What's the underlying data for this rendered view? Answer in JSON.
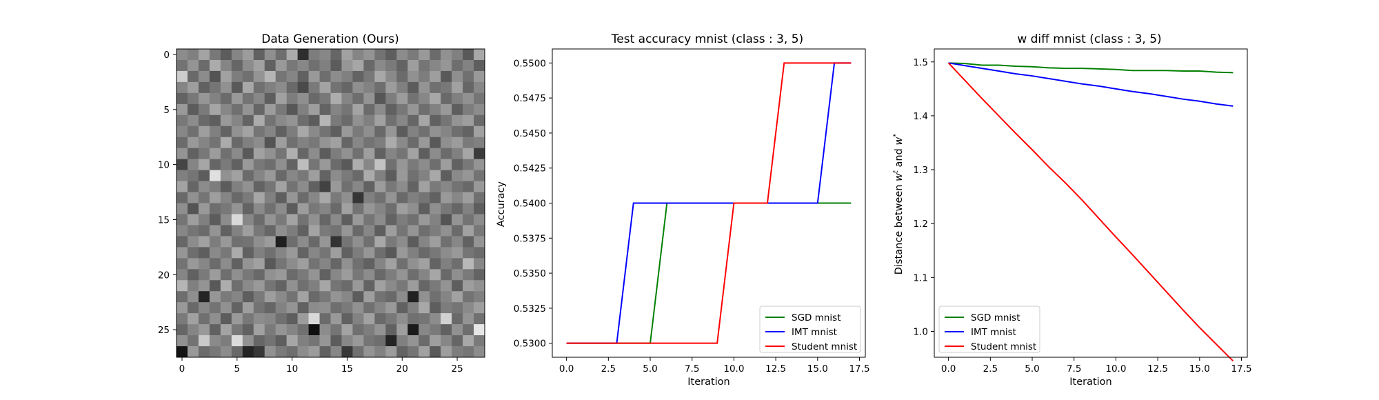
{
  "chart_data": [
    {
      "type": "heatmap",
      "title": "Data Generation (Ours)",
      "colormap": "gray",
      "rows": 28,
      "cols": 28,
      "xticks": [
        "0",
        "5",
        "10",
        "15",
        "20",
        "25"
      ],
      "yticks": [
        "0",
        "5",
        "10",
        "15",
        "20",
        "25"
      ],
      "vmin": 0,
      "vmax": 1,
      "values": [
        [
          0.55,
          0.5,
          0.64,
          0.47,
          0.36,
          0.52,
          0.61,
          0.38,
          0.56,
          0.43,
          0.67,
          0.18,
          0.49,
          0.53,
          0.4,
          0.63,
          0.52,
          0.58,
          0.45,
          0.37,
          0.55,
          0.48,
          0.6,
          0.42,
          0.57,
          0.5,
          0.35,
          0.66
        ],
        [
          0.45,
          0.58,
          0.42,
          0.67,
          0.52,
          0.4,
          0.55,
          0.63,
          0.38,
          0.6,
          0.47,
          0.53,
          0.44,
          0.5,
          0.36,
          0.59,
          0.65,
          0.41,
          0.54,
          0.48,
          0.39,
          0.62,
          0.46,
          0.53,
          0.59,
          0.43,
          0.51,
          0.37
        ],
        [
          0.8,
          0.41,
          0.55,
          0.33,
          0.63,
          0.49,
          0.44,
          0.58,
          0.71,
          0.46,
          0.52,
          0.38,
          0.6,
          0.43,
          0.55,
          0.5,
          0.39,
          0.47,
          0.66,
          0.54,
          0.42,
          0.57,
          0.49,
          0.62,
          0.35,
          0.56,
          0.44,
          0.6
        ],
        [
          0.52,
          0.62,
          0.38,
          0.46,
          0.57,
          0.35,
          0.66,
          0.44,
          0.5,
          0.55,
          0.41,
          0.29,
          0.48,
          0.64,
          0.45,
          0.4,
          0.56,
          0.51,
          0.43,
          0.61,
          0.5,
          0.36,
          0.58,
          0.44,
          0.47,
          0.63,
          0.4,
          0.53
        ],
        [
          0.39,
          0.47,
          0.59,
          0.51,
          0.42,
          0.6,
          0.45,
          0.53,
          0.37,
          0.63,
          0.49,
          0.56,
          0.41,
          0.47,
          0.68,
          0.52,
          0.43,
          0.58,
          0.34,
          0.49,
          0.61,
          0.45,
          0.53,
          0.66,
          0.41,
          0.5,
          0.57,
          0.46
        ],
        [
          0.6,
          0.36,
          0.48,
          0.65,
          0.53,
          0.44,
          0.58,
          0.4,
          0.61,
          0.47,
          0.34,
          0.5,
          0.62,
          0.39,
          0.52,
          0.46,
          0.64,
          0.42,
          0.55,
          0.38,
          0.47,
          0.59,
          0.43,
          0.51,
          0.6,
          0.37,
          0.49,
          0.55
        ],
        [
          0.47,
          0.55,
          0.41,
          0.37,
          0.6,
          0.52,
          0.39,
          0.67,
          0.45,
          0.54,
          0.58,
          0.43,
          0.36,
          0.71,
          0.48,
          0.42,
          0.57,
          0.5,
          0.63,
          0.44,
          0.53,
          0.4,
          0.65,
          0.38,
          0.46,
          0.58,
          0.62,
          0.41
        ],
        [
          0.53,
          0.44,
          0.62,
          0.5,
          0.39,
          0.57,
          0.64,
          0.46,
          0.52,
          0.38,
          0.49,
          0.66,
          0.54,
          0.45,
          0.37,
          0.6,
          0.48,
          0.56,
          0.41,
          0.59,
          0.36,
          0.51,
          0.44,
          0.57,
          0.52,
          0.43,
          0.39,
          0.63
        ],
        [
          0.42,
          0.6,
          0.52,
          0.45,
          0.67,
          0.41,
          0.5,
          0.55,
          0.33,
          0.62,
          0.44,
          0.51,
          0.47,
          0.58,
          0.63,
          0.4,
          0.53,
          0.45,
          0.49,
          0.67,
          0.54,
          0.42,
          0.6,
          0.35,
          0.56,
          0.61,
          0.48,
          0.5
        ],
        [
          0.58,
          0.38,
          0.47,
          0.61,
          0.44,
          0.54,
          0.35,
          0.63,
          0.57,
          0.46,
          0.69,
          0.4,
          0.55,
          0.36,
          0.49,
          0.57,
          0.44,
          0.62,
          0.38,
          0.52,
          0.46,
          0.64,
          0.37,
          0.55,
          0.42,
          0.5,
          0.65,
          0.23
        ],
        [
          0.27,
          0.52,
          0.65,
          0.4,
          0.48,
          0.38,
          0.6,
          0.47,
          0.43,
          0.56,
          0.39,
          0.74,
          0.46,
          0.6,
          0.42,
          0.35,
          0.68,
          0.53,
          0.76,
          0.44,
          0.59,
          0.48,
          0.55,
          0.43,
          0.62,
          0.38,
          0.47,
          0.58
        ],
        [
          0.5,
          0.46,
          0.36,
          0.88,
          0.57,
          0.63,
          0.42,
          0.52,
          0.6,
          0.41,
          0.53,
          0.47,
          0.62,
          0.39,
          0.55,
          0.48,
          0.41,
          0.67,
          0.5,
          0.36,
          0.6,
          0.44,
          0.51,
          0.66,
          0.37,
          0.54,
          0.59,
          0.45
        ],
        [
          0.64,
          0.4,
          0.55,
          0.49,
          0.36,
          0.5,
          0.57,
          0.39,
          0.46,
          0.64,
          0.45,
          0.55,
          0.38,
          0.26,
          0.6,
          0.44,
          0.53,
          0.38,
          0.61,
          0.47,
          0.55,
          0.39,
          0.63,
          0.48,
          0.53,
          0.45,
          0.41,
          0.6
        ],
        [
          0.41,
          0.57,
          0.46,
          0.62,
          0.52,
          0.41,
          0.48,
          0.65,
          0.5,
          0.37,
          0.59,
          0.42,
          0.53,
          0.66,
          0.48,
          0.56,
          0.21,
          0.5,
          0.44,
          0.58,
          0.41,
          0.5,
          0.46,
          0.38,
          0.6,
          0.53,
          0.62,
          0.44
        ],
        [
          0.56,
          0.33,
          0.6,
          0.43,
          0.47,
          0.58,
          0.39,
          0.54,
          0.44,
          0.55,
          0.36,
          0.61,
          0.47,
          0.52,
          0.41,
          0.63,
          0.45,
          0.59,
          0.52,
          0.43,
          0.62,
          0.56,
          0.37,
          0.56,
          0.47,
          0.4,
          0.51,
          0.37
        ],
        [
          0.46,
          0.62,
          0.5,
          0.36,
          0.55,
          0.85,
          0.53,
          0.42,
          0.58,
          0.48,
          0.64,
          0.45,
          0.57,
          0.4,
          0.54,
          0.37,
          0.6,
          0.46,
          0.55,
          0.39,
          0.49,
          0.44,
          0.6,
          0.51,
          0.33,
          0.58,
          0.45,
          0.55
        ],
        [
          0.53,
          0.46,
          0.42,
          0.58,
          0.38,
          0.51,
          0.62,
          0.47,
          0.4,
          0.56,
          0.49,
          0.38,
          0.64,
          0.48,
          0.45,
          0.59,
          0.41,
          0.53,
          0.37,
          0.62,
          0.46,
          0.58,
          0.43,
          0.49,
          0.57,
          0.42,
          0.63,
          0.47
        ],
        [
          0.4,
          0.55,
          0.63,
          0.49,
          0.6,
          0.44,
          0.45,
          0.56,
          0.61,
          0.12,
          0.43,
          0.55,
          0.41,
          0.59,
          0.2,
          0.46,
          0.56,
          0.44,
          0.66,
          0.48,
          0.55,
          0.36,
          0.52,
          0.62,
          0.44,
          0.53,
          0.38,
          0.58
        ],
        [
          0.59,
          0.43,
          0.37,
          0.54,
          0.47,
          0.67,
          0.38,
          0.5,
          0.44,
          0.52,
          0.6,
          0.39,
          0.53,
          0.46,
          0.62,
          0.38,
          0.49,
          0.59,
          0.43,
          0.35,
          0.6,
          0.5,
          0.41,
          0.47,
          0.55,
          0.6,
          0.46,
          0.42
        ],
        [
          0.45,
          0.6,
          0.53,
          0.42,
          0.55,
          0.38,
          0.58,
          0.63,
          0.35,
          0.46,
          0.55,
          0.62,
          0.45,
          0.52,
          0.4,
          0.57,
          0.44,
          0.38,
          0.52,
          0.63,
          0.44,
          0.57,
          0.63,
          0.39,
          0.5,
          0.43,
          0.72,
          0.53
        ],
        [
          0.52,
          0.38,
          0.48,
          0.61,
          0.43,
          0.56,
          0.47,
          0.41,
          0.57,
          0.6,
          0.42,
          0.48,
          0.58,
          0.38,
          0.53,
          0.61,
          0.47,
          0.55,
          0.41,
          0.49,
          0.58,
          0.43,
          0.52,
          0.65,
          0.41,
          0.56,
          0.48,
          0.39
        ],
        [
          0.71,
          0.5,
          0.58,
          0.35,
          0.68,
          0.43,
          0.54,
          0.6,
          0.46,
          0.39,
          0.57,
          0.44,
          0.5,
          0.65,
          0.46,
          0.42,
          0.6,
          0.39,
          0.63,
          0.54,
          0.47,
          0.61,
          0.4,
          0.48,
          0.58,
          0.37,
          0.62,
          0.57
        ],
        [
          0.43,
          0.56,
          0.14,
          0.59,
          0.48,
          0.52,
          0.37,
          0.48,
          0.62,
          0.54,
          0.45,
          0.64,
          0.41,
          0.47,
          0.58,
          0.53,
          0.36,
          0.62,
          0.45,
          0.41,
          0.55,
          0.13,
          0.57,
          0.44,
          0.52,
          0.63,
          0.45,
          0.5
        ],
        [
          0.6,
          0.41,
          0.53,
          0.45,
          0.57,
          0.39,
          0.62,
          0.45,
          0.4,
          0.51,
          0.58,
          0.38,
          0.55,
          0.56,
          0.43,
          0.48,
          0.57,
          0.44,
          0.52,
          0.6,
          0.38,
          0.5,
          0.66,
          0.37,
          0.49,
          0.46,
          0.54,
          0.62
        ],
        [
          0.48,
          0.63,
          0.44,
          0.56,
          0.36,
          0.6,
          0.47,
          0.55,
          0.53,
          0.44,
          0.37,
          0.61,
          0.85,
          0.42,
          0.6,
          0.38,
          0.51,
          0.63,
          0.41,
          0.47,
          0.56,
          0.44,
          0.46,
          0.55,
          0.82,
          0.41,
          0.58,
          0.44
        ],
        [
          0.4,
          0.52,
          0.6,
          0.38,
          0.64,
          0.47,
          0.38,
          0.63,
          0.48,
          0.58,
          0.52,
          0.44,
          0.06,
          0.55,
          0.46,
          0.64,
          0.44,
          0.49,
          0.58,
          0.38,
          0.62,
          0.1,
          0.53,
          0.48,
          0.38,
          0.57,
          0.43,
          0.9
        ],
        [
          0.57,
          0.45,
          0.79,
          0.54,
          0.49,
          0.86,
          0.57,
          0.4,
          0.45,
          0.37,
          0.65,
          0.5,
          0.46,
          0.59,
          0.36,
          0.53,
          0.6,
          0.46,
          0.43,
          0.14,
          0.5,
          0.58,
          0.42,
          0.62,
          0.53,
          0.4,
          0.66,
          0.48
        ],
        [
          0.08,
          0.6,
          0.42,
          0.47,
          0.55,
          0.41,
          0.14,
          0.22,
          0.57,
          0.48,
          0.43,
          0.55,
          0.61,
          0.38,
          0.53,
          0.22,
          0.44,
          0.58,
          0.51,
          0.61,
          0.39,
          0.46,
          0.63,
          0.35,
          0.62,
          0.49,
          0.46,
          0.55
        ]
      ]
    },
    {
      "type": "line",
      "title": "Test accuracy mnist (class : 3, 5)",
      "xlabel": "Iteration",
      "ylabel": "Accuracy",
      "xlim": [
        -0.85,
        17.85
      ],
      "ylim": [
        0.529,
        0.551
      ],
      "xticks": [
        0,
        2.5,
        5,
        7.5,
        10,
        12.5,
        15,
        17.5
      ],
      "xtick_labels": [
        "0.0",
        "2.5",
        "5.0",
        "7.5",
        "10.0",
        "12.5",
        "15.0",
        "17.5"
      ],
      "yticks": [
        0.53,
        0.5325,
        0.535,
        0.5375,
        0.54,
        0.5425,
        0.545,
        0.5475,
        0.55
      ],
      "ytick_labels": [
        "0.5300",
        "0.5325",
        "0.5350",
        "0.5375",
        "0.5400",
        "0.5425",
        "0.5450",
        "0.5475",
        "0.5500"
      ],
      "x": [
        0,
        1,
        2,
        3,
        4,
        5,
        6,
        7,
        8,
        9,
        10,
        11,
        12,
        13,
        14,
        15,
        16,
        17
      ],
      "series": [
        {
          "name": "SGD mnist",
          "color": "#008000",
          "values": [
            0.53,
            0.53,
            0.53,
            0.53,
            0.53,
            0.53,
            0.54,
            0.54,
            0.54,
            0.54,
            0.54,
            0.54,
            0.54,
            0.54,
            0.54,
            0.54,
            0.54,
            0.54
          ]
        },
        {
          "name": "IMT mnist",
          "color": "#0000ff",
          "values": [
            0.53,
            0.53,
            0.53,
            0.53,
            0.54,
            0.54,
            0.54,
            0.54,
            0.54,
            0.54,
            0.54,
            0.54,
            0.54,
            0.54,
            0.54,
            0.54,
            0.55,
            0.55
          ]
        },
        {
          "name": "Student mnist",
          "color": "#ff0000",
          "values": [
            0.53,
            0.53,
            0.53,
            0.53,
            0.53,
            0.53,
            0.53,
            0.53,
            0.53,
            0.53,
            0.54,
            0.54,
            0.54,
            0.55,
            0.55,
            0.55,
            0.55,
            0.55
          ]
        }
      ],
      "legend": "lower right"
    },
    {
      "type": "line",
      "title": "w diff mnist (class : 3, 5)",
      "xlabel": "Iteration",
      "ylabel": "Distance between w^t and w^*",
      "xlim": [
        -0.85,
        17.85
      ],
      "ylim": [
        0.952,
        1.524
      ],
      "xticks": [
        0,
        2.5,
        5,
        7.5,
        10,
        12.5,
        15,
        17.5
      ],
      "xtick_labels": [
        "0.0",
        "2.5",
        "5.0",
        "7.5",
        "10.0",
        "12.5",
        "15.0",
        "17.5"
      ],
      "yticks": [
        1.0,
        1.1,
        1.2,
        1.3,
        1.4,
        1.5
      ],
      "ytick_labels": [
        "1.0",
        "1.1",
        "1.2",
        "1.3",
        "1.4",
        "1.5"
      ],
      "x": [
        0,
        1,
        2,
        3,
        4,
        5,
        6,
        7,
        8,
        9,
        10,
        11,
        12,
        13,
        14,
        15,
        16,
        17
      ],
      "series": [
        {
          "name": "SGD mnist",
          "color": "#008000",
          "values": [
            1.498,
            1.497,
            1.494,
            1.494,
            1.492,
            1.491,
            1.489,
            1.488,
            1.488,
            1.487,
            1.486,
            1.484,
            1.484,
            1.484,
            1.483,
            1.483,
            1.481,
            1.48
          ]
        },
        {
          "name": "IMT mnist",
          "color": "#0000ff",
          "values": [
            1.498,
            1.493,
            1.488,
            1.483,
            1.478,
            1.474,
            1.469,
            1.464,
            1.459,
            1.455,
            1.45,
            1.445,
            1.441,
            1.436,
            1.431,
            1.427,
            1.422,
            1.418
          ]
        },
        {
          "name": "Student mnist",
          "color": "#ff0000",
          "values": [
            1.498,
            1.465,
            1.432,
            1.4,
            1.368,
            1.337,
            1.305,
            1.275,
            1.243,
            1.209,
            1.175,
            1.142,
            1.108,
            1.074,
            1.04,
            1.007,
            0.976,
            0.945
          ]
        }
      ],
      "legend": "lower left"
    }
  ]
}
